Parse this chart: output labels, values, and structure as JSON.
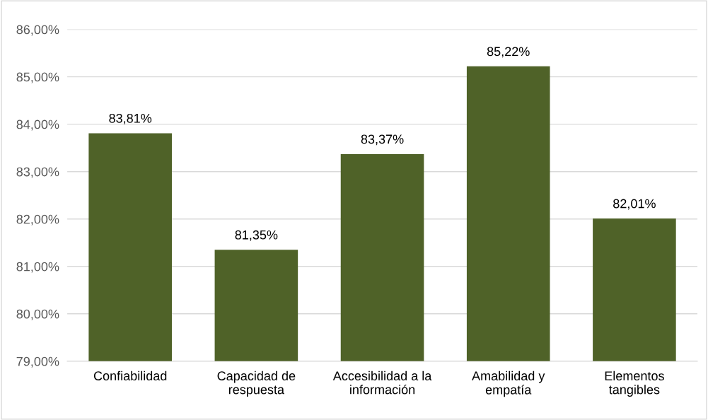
{
  "chart_data": {
    "type": "bar",
    "categories": [
      "Confiabilidad",
      "Capacidad de\nrespuesta",
      "Accesibilidad a la\ninformación",
      "Amabilidad y\nempatía",
      "Elementos\ntangibles"
    ],
    "values": [
      83.81,
      81.35,
      83.37,
      85.22,
      82.01
    ],
    "value_labels": [
      "83,81%",
      "81,35%",
      "83,37%",
      "85,22%",
      "82,01%"
    ],
    "color": "#4f6228",
    "ylim": [
      79,
      86
    ],
    "yticks": [
      {
        "value": 79,
        "label": "79,00%"
      },
      {
        "value": 80,
        "label": "80,00%"
      },
      {
        "value": 81,
        "label": "81,00%"
      },
      {
        "value": 82,
        "label": "82,00%"
      },
      {
        "value": 83,
        "label": "83,00%"
      },
      {
        "value": 84,
        "label": "84,00%"
      },
      {
        "value": 85,
        "label": "85,00%"
      },
      {
        "value": 86,
        "label": "86,00%"
      }
    ],
    "grid": "y",
    "legend": false
  }
}
